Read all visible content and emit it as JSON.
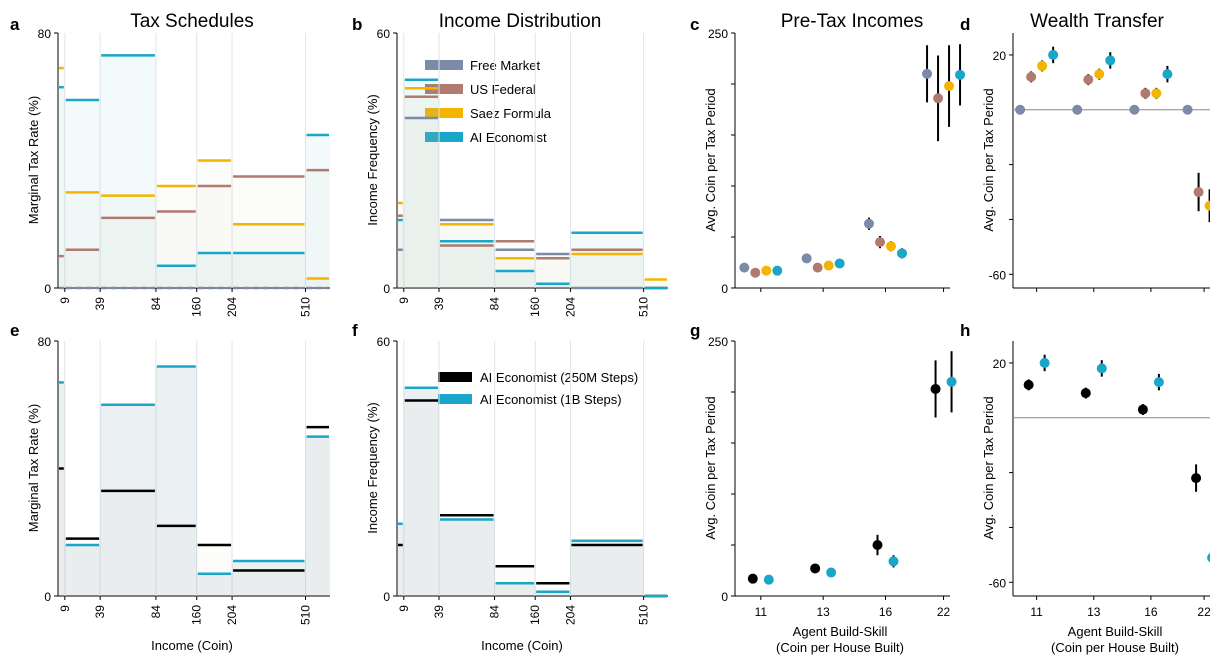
{
  "titles": {
    "a": "Tax Schedules",
    "b": "Income Distribution",
    "c": "Pre-Tax Incomes",
    "d": "Wealth Transfer"
  },
  "panel_letters": [
    "a",
    "b",
    "c",
    "d",
    "e",
    "f",
    "g",
    "h"
  ],
  "axis_labels": {
    "tax_y": "Marginal Tax Rate (%)",
    "dist_y": "Income Frequency (%)",
    "coin_y": "Avg. Coin per Tax Period",
    "income_x": "Income (Coin)",
    "skill_x_line1": "Agent Build-Skill",
    "skill_x_line2": "(Coin per House Built)"
  },
  "colors": {
    "free_market": "#7b8aa6",
    "us_federal": "#b07a6e",
    "saez": "#f5b400",
    "ai_economist": "#1aa6c8",
    "ai_250m": "#000000",
    "ai_1b": "#1aa6c8"
  },
  "legend_top": [
    {
      "label": "Free Market",
      "color_key": "free_market"
    },
    {
      "label": "US Federal",
      "color_key": "us_federal"
    },
    {
      "label": "Saez Formula",
      "color_key": "saez"
    },
    {
      "label": "AI Economist",
      "color_key": "ai_economist"
    }
  ],
  "legend_bottom": [
    {
      "label": "AI Economist (250M Steps)",
      "color_key": "ai_250m"
    },
    {
      "label": "AI Economist (1B Steps)",
      "color_key": "ai_1b"
    }
  ],
  "chart_data": [
    {
      "id": "a",
      "type": "line",
      "title": "Tax Schedules",
      "xlabel": "Income (Coin)",
      "ylabel": "Marginal Tax Rate (%)",
      "ylim": [
        0,
        80
      ],
      "x_ticks": [
        "9",
        "39",
        "84",
        "160",
        "204",
        "510"
      ],
      "y_ticks": [
        "0",
        "80"
      ],
      "brackets": [
        0,
        9,
        39,
        84,
        160,
        204,
        510,
        610
      ],
      "series": [
        {
          "name": "Free Market",
          "color_key": "free_market",
          "values": [
            0,
            0,
            0,
            0,
            0,
            0,
            0
          ]
        },
        {
          "name": "US Federal",
          "color_key": "us_federal",
          "values": [
            10,
            12,
            22,
            24,
            32,
            35,
            37
          ]
        },
        {
          "name": "Saez Formula",
          "color_key": "saez",
          "values": [
            69,
            30,
            29,
            32,
            40,
            20,
            3
          ]
        },
        {
          "name": "AI Economist",
          "color_key": "ai_economist",
          "values": [
            63,
            59,
            73,
            7,
            11,
            11,
            48
          ]
        }
      ]
    },
    {
      "id": "b",
      "type": "bar",
      "title": "Income Distribution",
      "xlabel": "Income (Coin)",
      "ylabel": "Income Frequency (%)",
      "ylim": [
        0,
        60
      ],
      "x_ticks": [
        "9",
        "39",
        "84",
        "160",
        "204",
        "510"
      ],
      "y_ticks": [
        "0",
        "60"
      ],
      "brackets": [
        0,
        9,
        39,
        84,
        160,
        204,
        510,
        610
      ],
      "series": [
        {
          "name": "Free Market",
          "color_key": "free_market",
          "values": [
            9,
            40,
            16,
            9,
            8,
            0,
            0
          ]
        },
        {
          "name": "US Federal",
          "color_key": "us_federal",
          "values": [
            17,
            45,
            10,
            11,
            7,
            9,
            0
          ]
        },
        {
          "name": "Saez Formula",
          "color_key": "saez",
          "values": [
            20,
            47,
            15,
            7,
            1,
            8,
            2
          ]
        },
        {
          "name": "AI Economist",
          "color_key": "ai_economist",
          "values": [
            16,
            49,
            11,
            4,
            1,
            13,
            0
          ]
        }
      ]
    },
    {
      "id": "c",
      "type": "scatter",
      "title": "Pre-Tax Incomes",
      "xlabel": "",
      "ylabel": "Avg. Coin per Tax Period",
      "ylim": [
        0,
        250
      ],
      "categories": [
        "11",
        "13",
        "16",
        "22"
      ],
      "y_ticks": [
        "0",
        "250"
      ],
      "series": [
        {
          "name": "Free Market",
          "color_key": "free_market",
          "values": [
            20,
            29,
            63,
            210
          ],
          "err": [
            4,
            4,
            6,
            28
          ]
        },
        {
          "name": "US Federal",
          "color_key": "us_federal",
          "values": [
            15,
            20,
            45,
            186
          ],
          "err": [
            3,
            3,
            6,
            42
          ]
        },
        {
          "name": "Saez Formula",
          "color_key": "saez",
          "values": [
            17,
            22,
            41,
            198
          ],
          "err": [
            3,
            3,
            5,
            40
          ]
        },
        {
          "name": "AI Economist",
          "color_key": "ai_economist",
          "values": [
            17,
            24,
            34,
            209
          ],
          "err": [
            3,
            3,
            5,
            30
          ]
        }
      ]
    },
    {
      "id": "d",
      "type": "scatter",
      "title": "Wealth Transfer",
      "xlabel": "",
      "ylabel": "Avg. Coin per Tax Period",
      "ylim": [
        -65,
        28
      ],
      "categories": [
        "11",
        "13",
        "16",
        "22"
      ],
      "y_ticks": [
        "20",
        "-60"
      ],
      "series": [
        {
          "name": "Free Market",
          "color_key": "free_market",
          "values": [
            0,
            0,
            0,
            0
          ],
          "err": [
            0,
            0,
            0,
            0
          ]
        },
        {
          "name": "US Federal",
          "color_key": "us_federal",
          "values": [
            12,
            11,
            6,
            -30
          ],
          "err": [
            2,
            2,
            2,
            7
          ]
        },
        {
          "name": "Saez Formula",
          "color_key": "saez",
          "values": [
            16,
            13,
            6,
            -35
          ],
          "err": [
            2,
            2,
            2,
            6
          ]
        },
        {
          "name": "AI Economist",
          "color_key": "ai_economist",
          "values": [
            20,
            18,
            13,
            -51
          ],
          "err": [
            3,
            3,
            3,
            0
          ]
        }
      ]
    },
    {
      "id": "e",
      "type": "line",
      "title": "",
      "xlabel": "Income (Coin)",
      "ylabel": "Marginal Tax Rate (%)",
      "ylim": [
        0,
        80
      ],
      "x_ticks": [
        "9",
        "39",
        "84",
        "160",
        "204",
        "510"
      ],
      "y_ticks": [
        "0",
        "80"
      ],
      "brackets": [
        0,
        9,
        39,
        84,
        160,
        204,
        510,
        610
      ],
      "series": [
        {
          "name": "AI Economist (250M Steps)",
          "color_key": "ai_250m",
          "values": [
            40,
            18,
            33,
            22,
            16,
            8,
            53
          ]
        },
        {
          "name": "AI Economist (1B Steps)",
          "color_key": "ai_1b",
          "values": [
            67,
            16,
            60,
            72,
            7,
            11,
            50
          ]
        }
      ]
    },
    {
      "id": "f",
      "type": "bar",
      "title": "",
      "xlabel": "Income (Coin)",
      "ylabel": "Income Frequency (%)",
      "ylim": [
        0,
        60
      ],
      "x_ticks": [
        "9",
        "39",
        "84",
        "160",
        "204",
        "510"
      ],
      "y_ticks": [
        "0",
        "60"
      ],
      "brackets": [
        0,
        9,
        39,
        84,
        160,
        204,
        510,
        610
      ],
      "series": [
        {
          "name": "AI Economist (250M Steps)",
          "color_key": "ai_250m",
          "values": [
            12,
            46,
            19,
            7,
            3,
            12,
            0
          ]
        },
        {
          "name": "AI Economist (1B Steps)",
          "color_key": "ai_1b",
          "values": [
            17,
            49,
            18,
            3,
            1,
            13,
            0
          ]
        }
      ]
    },
    {
      "id": "g",
      "type": "scatter",
      "title": "",
      "xlabel": "Agent Build-Skill (Coin per House Built)",
      "ylabel": "Avg. Coin per Tax Period",
      "ylim": [
        0,
        250
      ],
      "categories": [
        "11",
        "13",
        "16",
        "22"
      ],
      "y_ticks": [
        "0",
        "250"
      ],
      "series": [
        {
          "name": "AI Economist (250M Steps)",
          "color_key": "ai_250m",
          "values": [
            17,
            27,
            50,
            203
          ],
          "err": [
            2,
            4,
            10,
            28
          ]
        },
        {
          "name": "AI Economist (1B Steps)",
          "color_key": "ai_1b",
          "values": [
            16,
            23,
            34,
            210
          ],
          "err": [
            2,
            2,
            6,
            30
          ]
        }
      ]
    },
    {
      "id": "h",
      "type": "scatter",
      "title": "",
      "xlabel": "Agent Build-Skill (Coin per House Built)",
      "ylabel": "Avg. Coin per Tax Period",
      "ylim": [
        -65,
        28
      ],
      "categories": [
        "11",
        "13",
        "16",
        "22"
      ],
      "y_ticks": [
        "20",
        "-60"
      ],
      "series": [
        {
          "name": "AI Economist (250M Steps)",
          "color_key": "ai_250m",
          "values": [
            12,
            9,
            3,
            -22
          ],
          "err": [
            2,
            2,
            2,
            5
          ]
        },
        {
          "name": "AI Economist (1B Steps)",
          "color_key": "ai_1b",
          "values": [
            20,
            18,
            13,
            -51
          ],
          "err": [
            3,
            3,
            3,
            0
          ]
        }
      ]
    }
  ]
}
